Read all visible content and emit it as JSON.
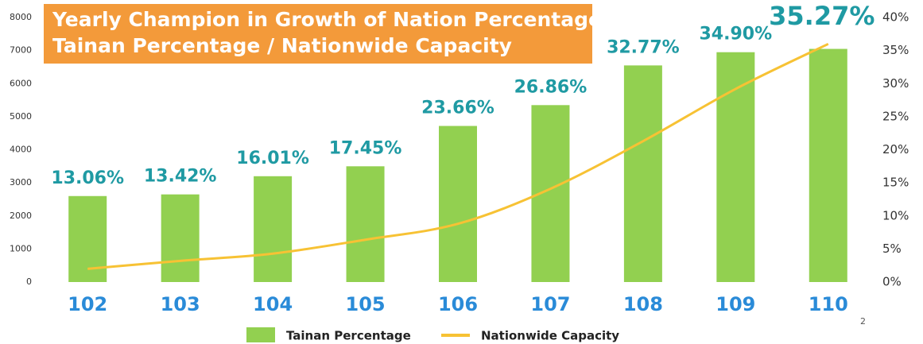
{
  "chart_data": {
    "type": "bar_line",
    "title": "Yearly Champion in Growth of Nation Percentage",
    "subtitle": "Tainan Percentage / Nationwide Capacity",
    "categories": [
      "102",
      "103",
      "104",
      "105",
      "106",
      "107",
      "108",
      "109",
      "110"
    ],
    "series": [
      {
        "name": "Tainan Percentage",
        "type": "bar",
        "color": "#92d050",
        "values": [
          2600,
          2650,
          3200,
          3500,
          4720,
          5350,
          6550,
          6950,
          7050
        ]
      },
      {
        "name": "Nationwide Capacity",
        "type": "line",
        "axis": "y2",
        "color": "#f7c234",
        "values": [
          2.0,
          3.2,
          4.3,
          6.4,
          8.8,
          14.1,
          21.3,
          29.2,
          36.0
        ]
      }
    ],
    "annotations": [
      "13.06%",
      "13.42%",
      "16.01%",
      "17.45%",
      "23.66%",
      "26.86%",
      "32.77%",
      "34.90%",
      "35.27%"
    ],
    "ylim": [
      0,
      8000
    ],
    "yticks": [
      0,
      1000,
      2000,
      3000,
      4000,
      5000,
      6000,
      7000,
      8000
    ],
    "y2lim": [
      0,
      40
    ],
    "y2ticks": [
      {
        "value": 0,
        "label": "0%"
      },
      {
        "value": 5,
        "label": "5%"
      },
      {
        "value": 10,
        "label": "10%"
      },
      {
        "value": 15,
        "label": "15%"
      },
      {
        "value": 20,
        "label": "20%"
      },
      {
        "value": 25,
        "label": "25%"
      },
      {
        "value": 30,
        "label": "30%"
      },
      {
        "value": 35,
        "label": "35%"
      },
      {
        "value": 40,
        "label": "40%"
      }
    ],
    "grid": false,
    "legend": "bottom",
    "page_number": "2"
  }
}
